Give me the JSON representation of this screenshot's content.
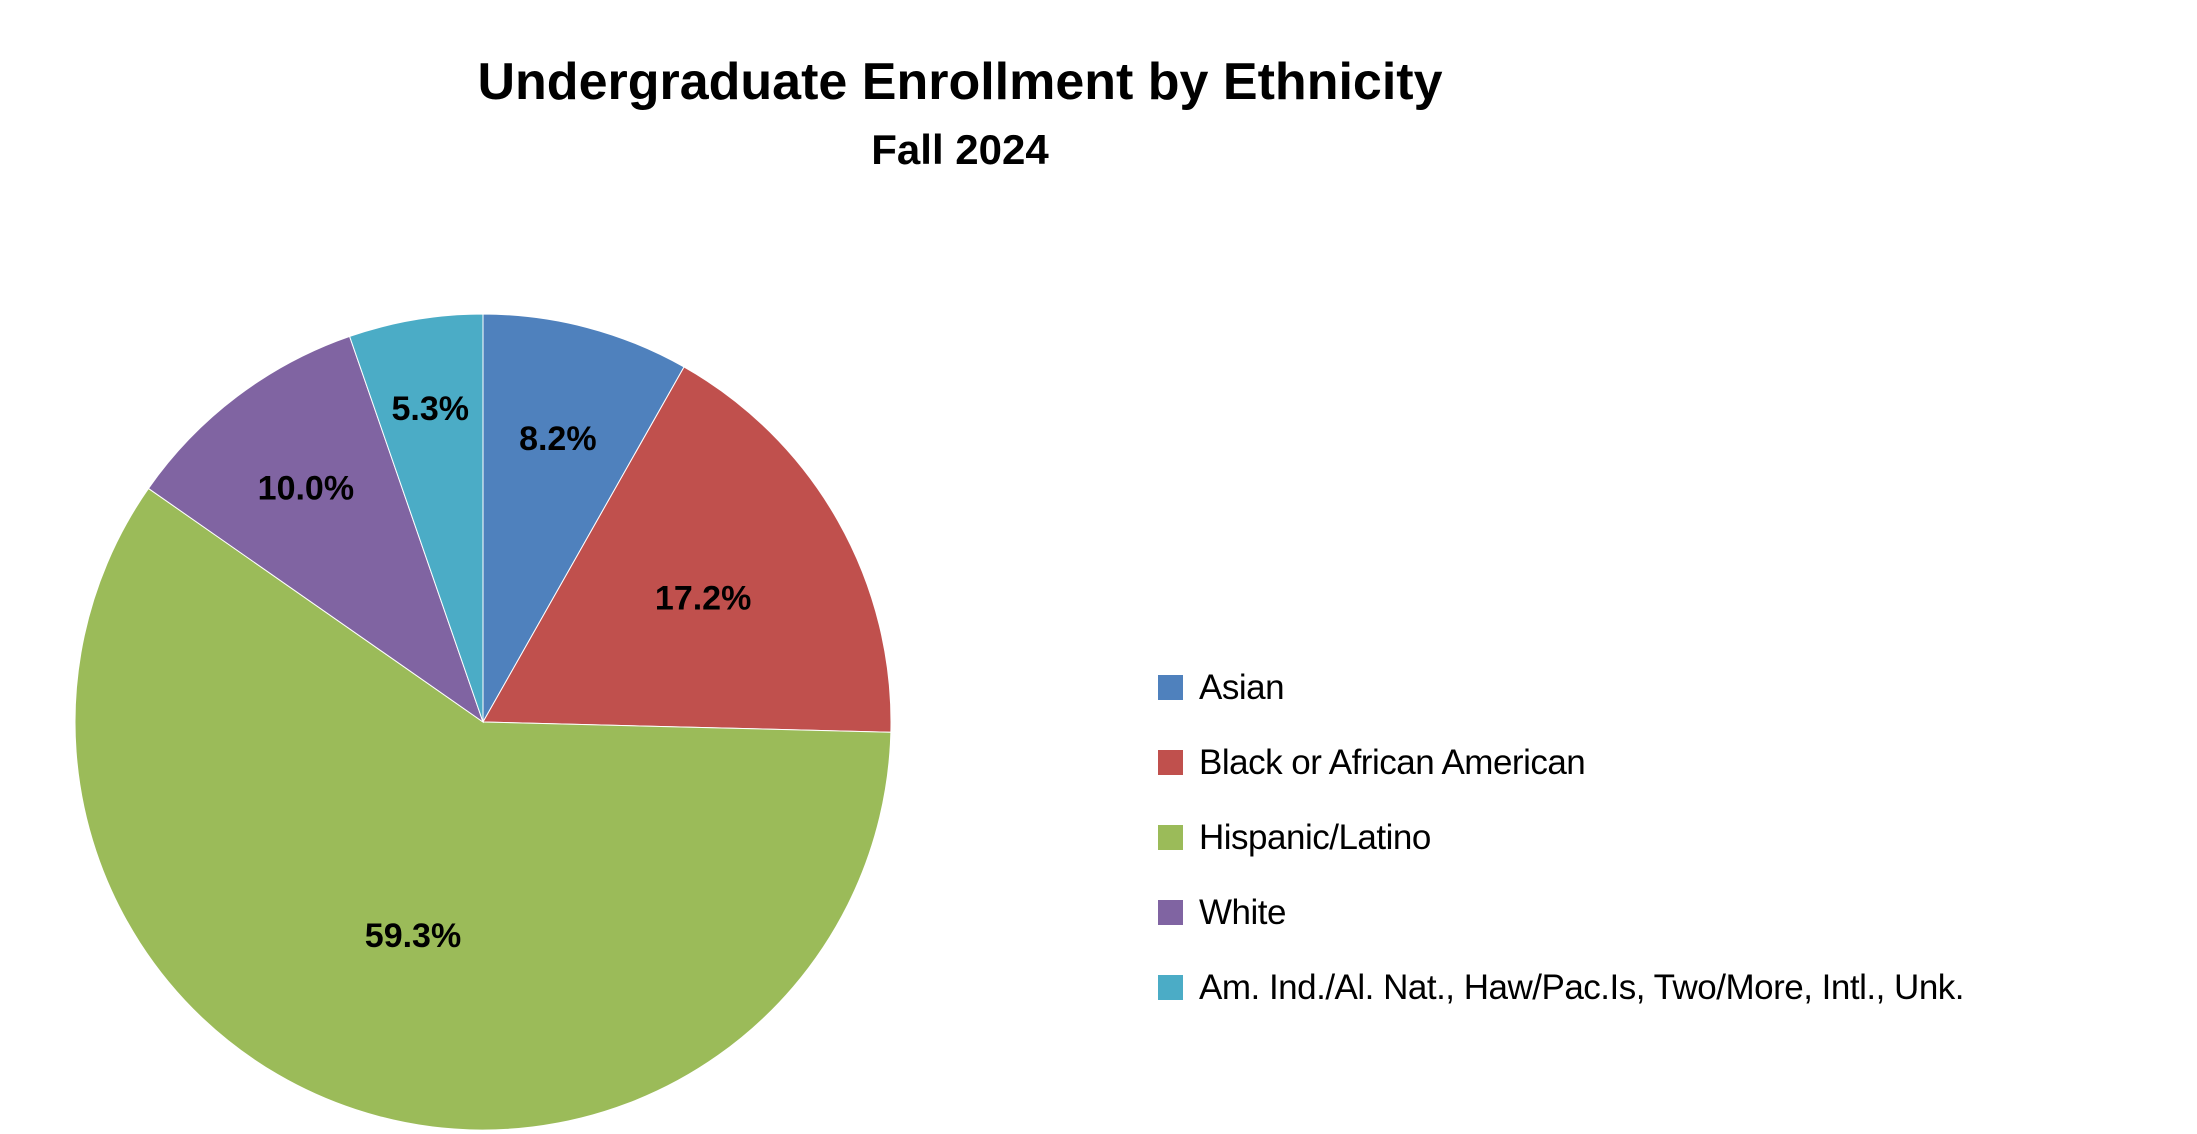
{
  "chart_data": {
    "type": "pie",
    "title": "Undergraduate Enrollment by Ethnicity",
    "subtitle": "Fall 2024",
    "legend_position": "right",
    "slices": [
      {
        "label": "Asian",
        "value": 8.2,
        "display": "8.2%",
        "color": "#4F81BD"
      },
      {
        "label": "Black or African American",
        "value": 17.2,
        "display": "17.2%",
        "color": "#C0504D"
      },
      {
        "label": "Hispanic/Latino",
        "value": 59.3,
        "display": "59.3%",
        "color": "#9BBB59"
      },
      {
        "label": "White",
        "value": 10.0,
        "display": "10.0%",
        "color": "#8064A2"
      },
      {
        "label": "Am. Ind./Al. Nat., Haw/Pac.Is, Two/More, Intl., Unk.",
        "value": 5.3,
        "display": "5.3%",
        "color": "#4BACC6"
      }
    ]
  }
}
